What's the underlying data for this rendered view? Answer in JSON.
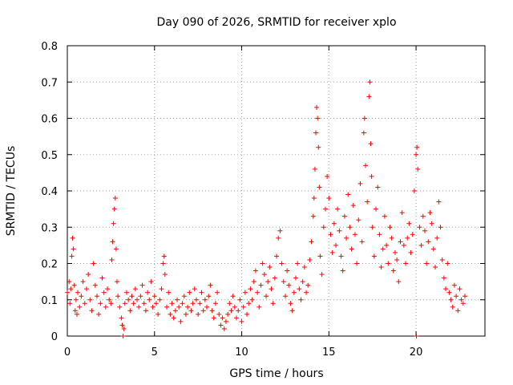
{
  "chart_data": {
    "type": "scatter",
    "title": "Day 090 of 2026, SRMTID for receiver xplo",
    "xlabel": "GPS time / hours",
    "ylabel": "SRMTID / TECUs",
    "xlim": [
      0,
      23.95
    ],
    "ylim": [
      0,
      0.8
    ],
    "xticks": [
      0,
      5,
      10,
      15,
      20
    ],
    "yticks": [
      0,
      0.1,
      0.2,
      0.3,
      0.4,
      0.5,
      0.6,
      0.7,
      0.8
    ],
    "xtick_labels": [
      "0",
      "5",
      "10",
      "15",
      "20"
    ],
    "ytick_labels": [
      "0",
      "0.1",
      "0.2",
      "0.3",
      "0.4",
      "0.5",
      "0.6",
      "0.7",
      "0.8"
    ],
    "grid": true,
    "marker": "+",
    "color": "#ff0000",
    "series": [
      {
        "name": "SRMTID",
        "points": [
          [
            0.0,
            0.12
          ],
          [
            0.1,
            0.15
          ],
          [
            0.15,
            0.09
          ],
          [
            0.2,
            0.13
          ],
          [
            0.25,
            0.22
          ],
          [
            0.3,
            0.27
          ],
          [
            0.35,
            0.24
          ],
          [
            0.4,
            0.14
          ],
          [
            0.45,
            0.07
          ],
          [
            0.5,
            0.1
          ],
          [
            0.55,
            0.06
          ],
          [
            0.6,
            0.12
          ],
          [
            0.7,
            0.08
          ],
          [
            0.8,
            0.11
          ],
          [
            0.9,
            0.15
          ],
          [
            1.0,
            0.09
          ],
          [
            1.1,
            0.13
          ],
          [
            1.2,
            0.17
          ],
          [
            1.3,
            0.1
          ],
          [
            1.4,
            0.07
          ],
          [
            1.5,
            0.2
          ],
          [
            1.6,
            0.14
          ],
          [
            1.7,
            0.11
          ],
          [
            1.8,
            0.06
          ],
          [
            1.9,
            0.09
          ],
          [
            2.0,
            0.16
          ],
          [
            2.1,
            0.12
          ],
          [
            2.2,
            0.08
          ],
          [
            2.3,
            0.13
          ],
          [
            2.4,
            0.1
          ],
          [
            2.5,
            0.09
          ],
          [
            2.55,
            0.21
          ],
          [
            2.6,
            0.26
          ],
          [
            2.65,
            0.31
          ],
          [
            2.7,
            0.35
          ],
          [
            2.75,
            0.38
          ],
          [
            2.8,
            0.24
          ],
          [
            2.85,
            0.15
          ],
          [
            2.9,
            0.11
          ],
          [
            3.0,
            0.08
          ],
          [
            3.1,
            0.05
          ],
          [
            3.15,
            0.03
          ],
          [
            3.2,
            0.0
          ],
          [
            3.25,
            0.02
          ],
          [
            3.3,
            0.09
          ],
          [
            3.4,
            0.12
          ],
          [
            3.5,
            0.1
          ],
          [
            3.6,
            0.07
          ],
          [
            3.7,
            0.11
          ],
          [
            3.8,
            0.09
          ],
          [
            3.9,
            0.13
          ],
          [
            4.0,
            0.1
          ],
          [
            4.1,
            0.08
          ],
          [
            4.2,
            0.11
          ],
          [
            4.3,
            0.14
          ],
          [
            4.4,
            0.09
          ],
          [
            4.5,
            0.07
          ],
          [
            4.6,
            0.12
          ],
          [
            4.7,
            0.1
          ],
          [
            4.8,
            0.15
          ],
          [
            4.9,
            0.08
          ],
          [
            5.0,
            0.11
          ],
          [
            5.1,
            0.09
          ],
          [
            5.2,
            0.06
          ],
          [
            5.3,
            0.1
          ],
          [
            5.4,
            0.13
          ],
          [
            5.5,
            0.2
          ],
          [
            5.55,
            0.22
          ],
          [
            5.6,
            0.17
          ],
          [
            5.7,
            0.08
          ],
          [
            5.8,
            0.12
          ],
          [
            5.9,
            0.06
          ],
          [
            6.0,
            0.09
          ],
          [
            6.1,
            0.05
          ],
          [
            6.2,
            0.07
          ],
          [
            6.3,
            0.1
          ],
          [
            6.4,
            0.08
          ],
          [
            6.5,
            0.04
          ],
          [
            6.6,
            0.09
          ],
          [
            6.7,
            0.11
          ],
          [
            6.8,
            0.06
          ],
          [
            6.9,
            0.08
          ],
          [
            7.0,
            0.12
          ],
          [
            7.1,
            0.07
          ],
          [
            7.2,
            0.09
          ],
          [
            7.3,
            0.13
          ],
          [
            7.4,
            0.1
          ],
          [
            7.5,
            0.06
          ],
          [
            7.6,
            0.09
          ],
          [
            7.7,
            0.12
          ],
          [
            7.8,
            0.07
          ],
          [
            7.9,
            0.1
          ],
          [
            8.0,
            0.08
          ],
          [
            8.1,
            0.11
          ],
          [
            8.2,
            0.14
          ],
          [
            8.3,
            0.07
          ],
          [
            8.4,
            0.05
          ],
          [
            8.5,
            0.09
          ],
          [
            8.6,
            0.12
          ],
          [
            8.7,
            0.06
          ],
          [
            8.8,
            0.03
          ],
          [
            8.9,
            0.05
          ],
          [
            9.0,
            0.02
          ],
          [
            9.1,
            0.04
          ],
          [
            9.2,
            0.06
          ],
          [
            9.3,
            0.09
          ],
          [
            9.4,
            0.07
          ],
          [
            9.5,
            0.11
          ],
          [
            9.6,
            0.08
          ],
          [
            9.7,
            0.05
          ],
          [
            9.8,
            0.07
          ],
          [
            9.9,
            0.1
          ],
          [
            10.0,
            0.04
          ],
          [
            10.1,
            0.08
          ],
          [
            10.2,
            0.12
          ],
          [
            10.3,
            0.06
          ],
          [
            10.4,
            0.09
          ],
          [
            10.5,
            0.13
          ],
          [
            10.6,
            0.1
          ],
          [
            10.7,
            0.15
          ],
          [
            10.8,
            0.18
          ],
          [
            10.9,
            0.12
          ],
          [
            11.0,
            0.08
          ],
          [
            11.1,
            0.14
          ],
          [
            11.2,
            0.2
          ],
          [
            11.3,
            0.17
          ],
          [
            11.4,
            0.11
          ],
          [
            11.5,
            0.15
          ],
          [
            11.6,
            0.19
          ],
          [
            11.7,
            0.13
          ],
          [
            11.8,
            0.09
          ],
          [
            11.9,
            0.16
          ],
          [
            12.0,
            0.22
          ],
          [
            12.1,
            0.27
          ],
          [
            12.2,
            0.29
          ],
          [
            12.3,
            0.2
          ],
          [
            12.4,
            0.15
          ],
          [
            12.5,
            0.11
          ],
          [
            12.6,
            0.18
          ],
          [
            12.7,
            0.14
          ],
          [
            12.8,
            0.09
          ],
          [
            12.9,
            0.07
          ],
          [
            13.0,
            0.12
          ],
          [
            13.1,
            0.16
          ],
          [
            13.2,
            0.2
          ],
          [
            13.3,
            0.13
          ],
          [
            13.4,
            0.1
          ],
          [
            13.5,
            0.15
          ],
          [
            13.6,
            0.19
          ],
          [
            13.7,
            0.12
          ],
          [
            13.8,
            0.14
          ],
          [
            13.9,
            0.21
          ],
          [
            14.0,
            0.26
          ],
          [
            14.1,
            0.33
          ],
          [
            14.15,
            0.38
          ],
          [
            14.2,
            0.46
          ],
          [
            14.25,
            0.56
          ],
          [
            14.3,
            0.63
          ],
          [
            14.35,
            0.6
          ],
          [
            14.4,
            0.52
          ],
          [
            14.45,
            0.41
          ],
          [
            14.5,
            0.22
          ],
          [
            14.6,
            0.17
          ],
          [
            14.7,
            0.3
          ],
          [
            14.8,
            0.35
          ],
          [
            14.9,
            0.44
          ],
          [
            15.0,
            0.38
          ],
          [
            15.1,
            0.28
          ],
          [
            15.2,
            0.23
          ],
          [
            15.3,
            0.31
          ],
          [
            15.4,
            0.25
          ],
          [
            15.5,
            0.35
          ],
          [
            15.6,
            0.29
          ],
          [
            15.7,
            0.22
          ],
          [
            15.8,
            0.18
          ],
          [
            15.9,
            0.33
          ],
          [
            16.0,
            0.27
          ],
          [
            16.1,
            0.39
          ],
          [
            16.2,
            0.3
          ],
          [
            16.3,
            0.24
          ],
          [
            16.4,
            0.36
          ],
          [
            16.5,
            0.28
          ],
          [
            16.6,
            0.2
          ],
          [
            16.7,
            0.32
          ],
          [
            16.8,
            0.42
          ],
          [
            16.9,
            0.26
          ],
          [
            17.0,
            0.56
          ],
          [
            17.05,
            0.6
          ],
          [
            17.1,
            0.47
          ],
          [
            17.2,
            0.37
          ],
          [
            17.3,
            0.66
          ],
          [
            17.35,
            0.7
          ],
          [
            17.4,
            0.53
          ],
          [
            17.45,
            0.44
          ],
          [
            17.5,
            0.3
          ],
          [
            17.6,
            0.22
          ],
          [
            17.7,
            0.35
          ],
          [
            17.8,
            0.41
          ],
          [
            17.9,
            0.28
          ],
          [
            18.0,
            0.19
          ],
          [
            18.1,
            0.24
          ],
          [
            18.2,
            0.33
          ],
          [
            18.3,
            0.25
          ],
          [
            18.4,
            0.2
          ],
          [
            18.5,
            0.3
          ],
          [
            18.6,
            0.27
          ],
          [
            18.7,
            0.18
          ],
          [
            18.8,
            0.23
          ],
          [
            18.9,
            0.21
          ],
          [
            19.0,
            0.15
          ],
          [
            19.1,
            0.26
          ],
          [
            19.2,
            0.34
          ],
          [
            19.3,
            0.25
          ],
          [
            19.4,
            0.2
          ],
          [
            19.5,
            0.27
          ],
          [
            19.6,
            0.31
          ],
          [
            19.7,
            0.23
          ],
          [
            19.8,
            0.28
          ],
          [
            19.9,
            0.4
          ],
          [
            20.0,
            0.5
          ],
          [
            20.02,
            0.0
          ],
          [
            20.05,
            0.52
          ],
          [
            20.1,
            0.46
          ],
          [
            20.2,
            0.3
          ],
          [
            20.3,
            0.25
          ],
          [
            20.4,
            0.33
          ],
          [
            20.5,
            0.29
          ],
          [
            20.6,
            0.2
          ],
          [
            20.7,
            0.26
          ],
          [
            20.8,
            0.34
          ],
          [
            20.9,
            0.31
          ],
          [
            21.0,
            0.24
          ],
          [
            21.1,
            0.19
          ],
          [
            21.2,
            0.27
          ],
          [
            21.3,
            0.37
          ],
          [
            21.4,
            0.3
          ],
          [
            21.5,
            0.21
          ],
          [
            21.6,
            0.16
          ],
          [
            21.7,
            0.13
          ],
          [
            21.8,
            0.2
          ],
          [
            21.9,
            0.12
          ],
          [
            22.0,
            0.1
          ],
          [
            22.1,
            0.08
          ],
          [
            22.2,
            0.14
          ],
          [
            22.3,
            0.11
          ],
          [
            22.4,
            0.07
          ],
          [
            22.5,
            0.13
          ],
          [
            22.6,
            0.1
          ],
          [
            22.7,
            0.09
          ],
          [
            22.8,
            0.11
          ]
        ]
      }
    ]
  }
}
